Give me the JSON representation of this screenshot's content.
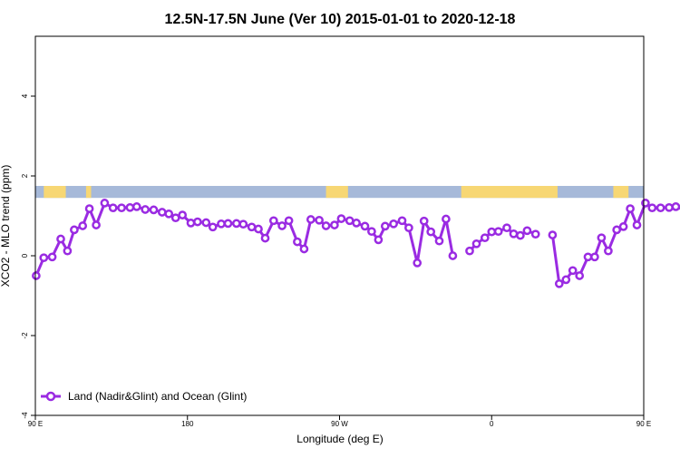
{
  "colors": {
    "series": "#9a2be2",
    "band_ocean": "#a6b9d9",
    "band_land": "#f7d774",
    "axis": "#000000",
    "background": "#ffffff"
  },
  "chart_data": {
    "type": "line",
    "title": "12.5N-17.5N June (Ver 10)   2015-01-01 to 2020-12-18",
    "xlabel": "Longitude (deg E)",
    "ylabel": "XCO2 - MLO trend (ppm)",
    "xlim": [
      90,
      450
    ],
    "ylim": [
      -4,
      5.5
    ],
    "xticks": [
      {
        "value": 90,
        "label": "90 E"
      },
      {
        "value": 180,
        "label": "180"
      },
      {
        "value": 270,
        "label": "90 W"
      },
      {
        "value": 360,
        "label": "0"
      },
      {
        "value": 450,
        "label": "90 E"
      },
      {
        "value": 540,
        "label": "180"
      }
    ],
    "yticks": [
      {
        "value": -4,
        "label": "-4"
      },
      {
        "value": -2,
        "label": "-2"
      },
      {
        "value": 0,
        "label": "0"
      },
      {
        "value": 2,
        "label": "2"
      },
      {
        "value": 4,
        "label": "4"
      }
    ],
    "legend": {
      "position": "bottom-left",
      "entries": [
        "Land (Nadir&Glint) and Ocean (Glint)"
      ]
    },
    "band": {
      "description": "land/ocean strip",
      "y_range": [
        1.45,
        1.75
      ],
      "land_segments": [
        [
          95,
          108
        ],
        [
          120,
          123
        ],
        [
          262,
          275
        ],
        [
          342,
          399
        ],
        [
          432,
          441
        ],
        [
          455,
          470
        ],
        [
          477,
          479
        ]
      ]
    },
    "series": [
      {
        "name": "Land (Nadir&Glint) and Ocean (Glint)",
        "segments": [
          [
            [
              90.5,
              -0.5
            ],
            [
              95,
              -0.05
            ],
            [
              100,
              -0.03
            ],
            [
              105,
              0.42
            ],
            [
              109,
              0.12
            ],
            [
              113,
              0.65
            ],
            [
              118,
              0.75
            ],
            [
              122,
              1.18
            ],
            [
              126,
              0.77
            ],
            [
              131,
              1.32
            ],
            [
              136,
              1.2
            ],
            [
              141,
              1.2
            ],
            [
              146,
              1.21
            ],
            [
              150,
              1.23
            ],
            [
              155,
              1.16
            ],
            [
              160,
              1.15
            ],
            [
              165,
              1.09
            ],
            [
              169,
              1.05
            ],
            [
              173,
              0.95
            ],
            [
              177,
              1.02
            ],
            [
              182,
              0.82
            ],
            [
              186,
              0.85
            ],
            [
              191,
              0.83
            ],
            [
              195,
              0.72
            ],
            [
              200,
              0.8
            ],
            [
              204,
              0.81
            ],
            [
              209,
              0.81
            ],
            [
              213,
              0.79
            ],
            [
              218,
              0.72
            ],
            [
              222,
              0.67
            ],
            [
              226,
              0.44
            ],
            [
              231,
              0.88
            ],
            [
              236,
              0.75
            ],
            [
              240,
              0.88
            ],
            [
              245,
              0.35
            ],
            [
              249,
              0.17
            ],
            [
              253,
              0.91
            ],
            [
              258,
              0.89
            ],
            [
              262,
              0.75
            ],
            [
              267,
              0.77
            ],
            [
              271,
              0.93
            ],
            [
              276,
              0.88
            ],
            [
              280,
              0.82
            ],
            [
              285,
              0.74
            ],
            [
              289,
              0.61
            ],
            [
              293,
              0.4
            ],
            [
              297,
              0.74
            ],
            [
              302,
              0.8
            ],
            [
              307,
              0.88
            ],
            [
              311,
              0.7
            ],
            [
              316,
              -0.18
            ],
            [
              320,
              0.87
            ],
            [
              324,
              0.6
            ],
            [
              329,
              0.37
            ],
            [
              333,
              0.92
            ],
            [
              337,
              0.0
            ]
          ],
          [
            [
              347,
              0.12
            ],
            [
              351,
              0.3
            ],
            [
              356,
              0.45
            ],
            [
              360,
              0.6
            ],
            [
              364,
              0.61
            ],
            [
              369,
              0.7
            ],
            [
              373,
              0.55
            ],
            [
              377,
              0.51
            ],
            [
              381,
              0.63
            ],
            [
              386,
              0.54
            ]
          ],
          [
            [
              396,
              0.52
            ],
            [
              400,
              -0.7
            ],
            [
              404,
              -0.6
            ],
            [
              408,
              -0.37
            ],
            [
              412,
              -0.5
            ],
            [
              417,
              -0.03
            ],
            [
              421,
              -0.03
            ],
            [
              425,
              0.45
            ],
            [
              429,
              0.12
            ],
            [
              434,
              0.65
            ],
            [
              438,
              0.73
            ],
            [
              442,
              1.18
            ],
            [
              446,
              0.77
            ],
            [
              451,
              1.32
            ],
            [
              455,
              1.2
            ],
            [
              460,
              1.2
            ],
            [
              465,
              1.21
            ],
            [
              469,
              1.23
            ],
            [
              474,
              1.16
            ],
            [
              478,
              1.15
            ],
            [
              483,
              1.1
            ],
            [
              487,
              1.07
            ],
            [
              490,
              1.05
            ]
          ]
        ]
      }
    ]
  }
}
